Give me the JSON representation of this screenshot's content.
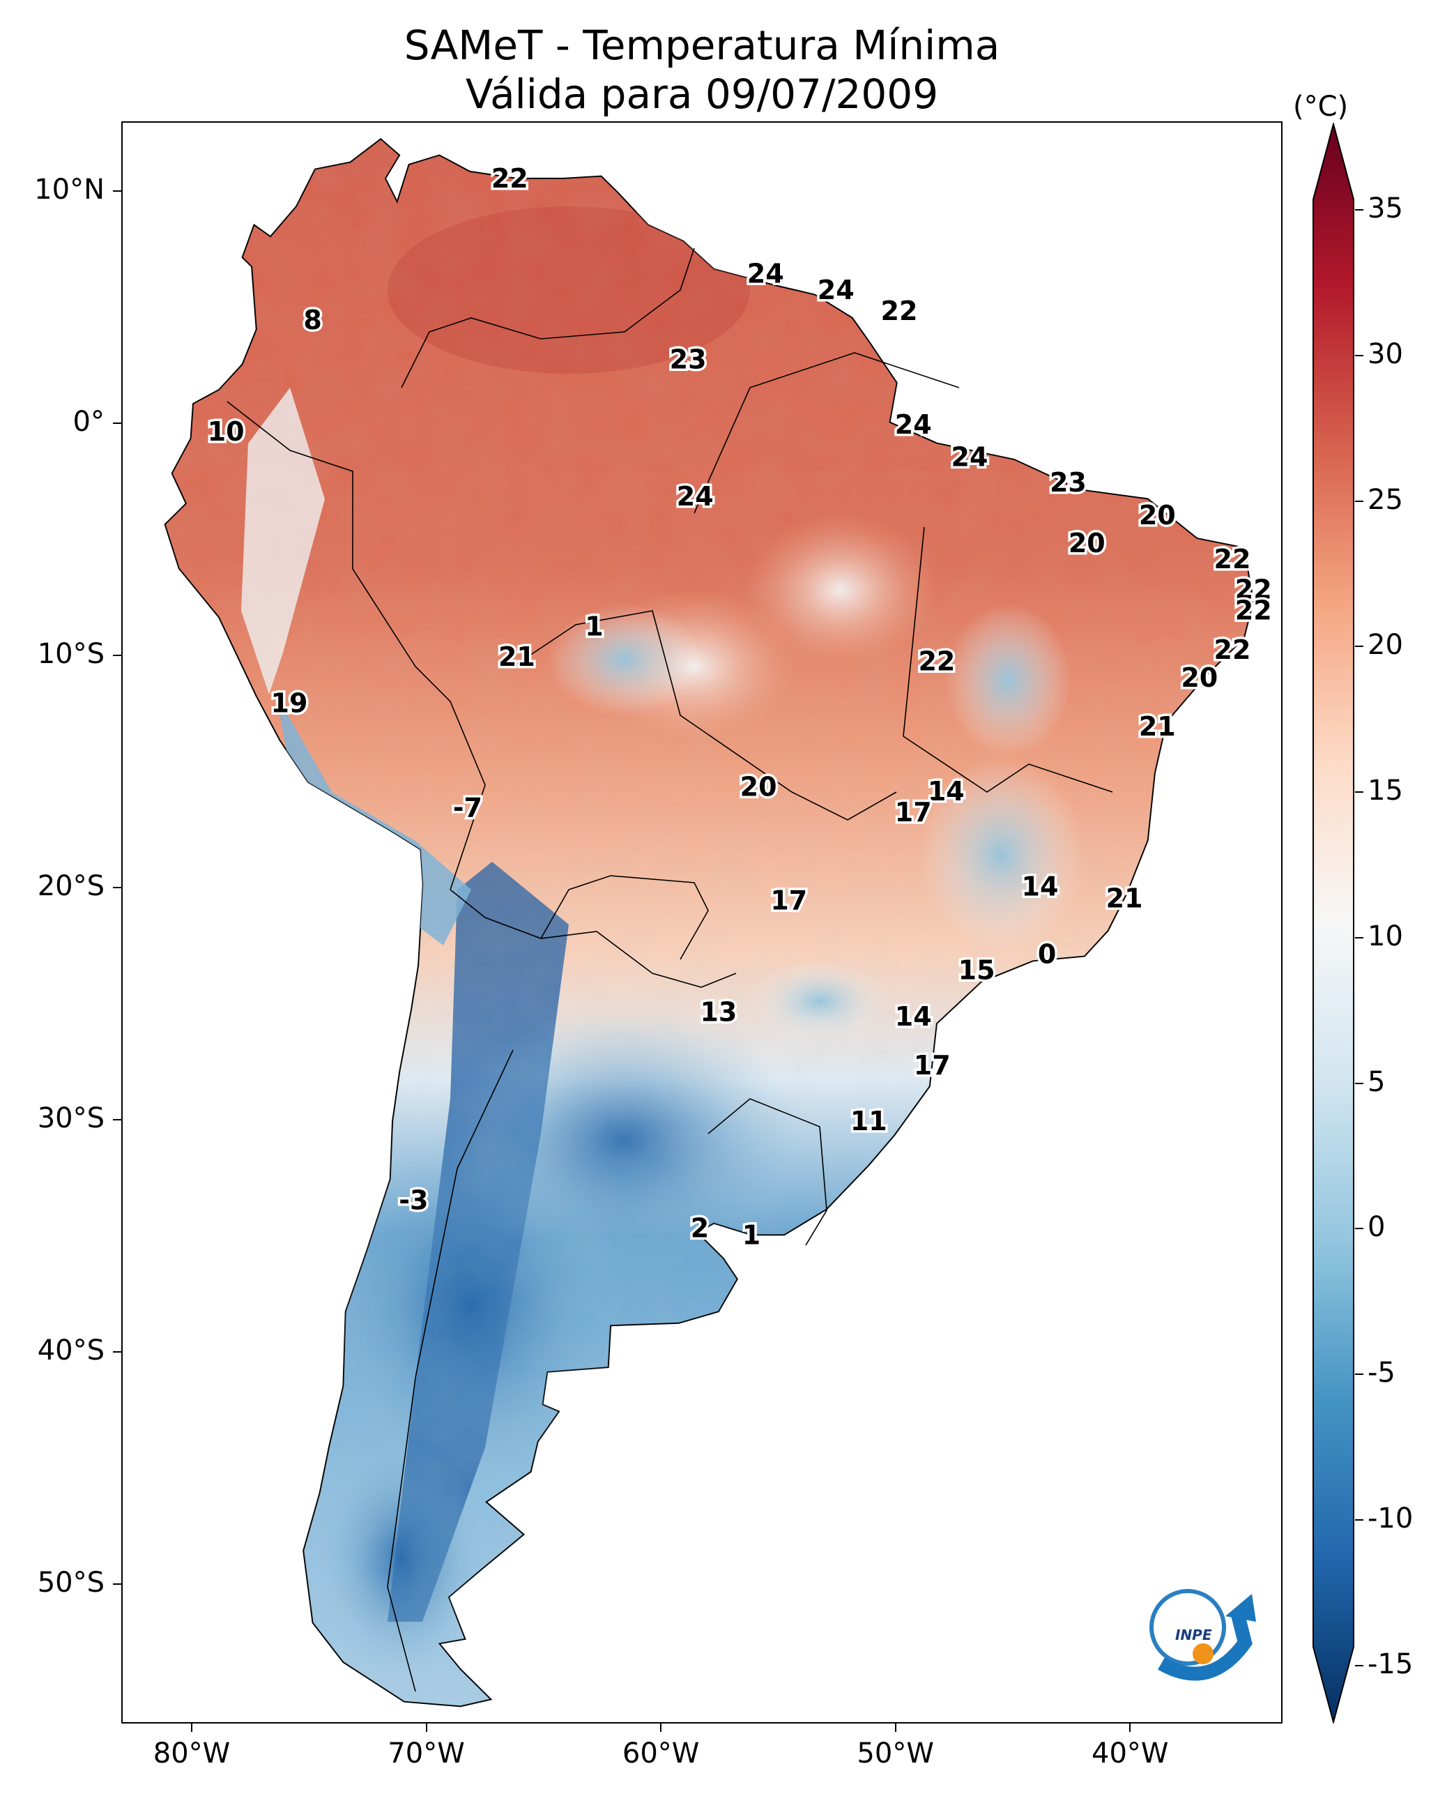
{
  "header": {
    "title": "SAMeT - Temperatura Mínima",
    "subtitle": "Válida para 09/07/2009"
  },
  "axes": {
    "lat_labels": [
      "10°N",
      "0°",
      "10°S",
      "20°S",
      "30°S",
      "40°S",
      "50°S"
    ],
    "lat_values": [
      10,
      0,
      -10,
      -20,
      -30,
      -40,
      -50
    ],
    "lon_labels": [
      "80°W",
      "70°W",
      "60°W",
      "50°W",
      "40°W"
    ],
    "lon_values": [
      -80,
      -70,
      -60,
      -50,
      -40
    ],
    "lat_range": [
      -56,
      13
    ],
    "lon_range": [
      -83,
      -33.5
    ]
  },
  "colorbar": {
    "unit": "(°C)",
    "ticks": [
      "35",
      "30",
      "25",
      "20",
      "15",
      "10",
      "5",
      "0",
      "-5",
      "-10",
      "-15"
    ],
    "tick_values": [
      35,
      30,
      25,
      20,
      15,
      10,
      5,
      0,
      -5,
      -10,
      -15
    ],
    "range": [
      -17,
      38
    ],
    "colormap": "RdBu_r",
    "colors": [
      "#053061",
      "#2166ac",
      "#4393c3",
      "#92c5de",
      "#d1e5f0",
      "#f7f7f7",
      "#fddbc7",
      "#f4a582",
      "#d6604d",
      "#b2182b",
      "#67001f"
    ]
  },
  "station_values": [
    {
      "label": "22",
      "lon": -66.5,
      "lat": 10.6
    },
    {
      "label": "24",
      "lon": -55.6,
      "lat": 6.5
    },
    {
      "label": "24",
      "lon": -52.6,
      "lat": 5.8
    },
    {
      "label": "22",
      "lon": -49.9,
      "lat": 4.9
    },
    {
      "label": "8",
      "lon": -74.9,
      "lat": 4.5
    },
    {
      "label": "23",
      "lon": -58.9,
      "lat": 2.8
    },
    {
      "label": "24",
      "lon": -49.3,
      "lat": 0.0
    },
    {
      "label": "10",
      "lon": -78.6,
      "lat": -0.3
    },
    {
      "label": "24",
      "lon": -46.9,
      "lat": -1.4
    },
    {
      "label": "23",
      "lon": -42.7,
      "lat": -2.5
    },
    {
      "label": "24",
      "lon": -58.6,
      "lat": -3.1
    },
    {
      "label": "20",
      "lon": -38.9,
      "lat": -3.9
    },
    {
      "label": "20",
      "lon": -41.9,
      "lat": -5.1
    },
    {
      "label": "22",
      "lon": -35.7,
      "lat": -5.8
    },
    {
      "label": "22",
      "lon": -34.8,
      "lat": -7.1
    },
    {
      "label": "22",
      "lon": -34.8,
      "lat": -8.0
    },
    {
      "label": "1",
      "lon": -62.9,
      "lat": -8.7
    },
    {
      "label": "22",
      "lon": -35.7,
      "lat": -9.7
    },
    {
      "label": "21",
      "lon": -66.2,
      "lat": -10.0
    },
    {
      "label": "22",
      "lon": -48.3,
      "lat": -10.2
    },
    {
      "label": "20",
      "lon": -37.1,
      "lat": -10.9
    },
    {
      "label": "19",
      "lon": -75.9,
      "lat": -12.0
    },
    {
      "label": "21",
      "lon": -38.9,
      "lat": -13.0
    },
    {
      "label": "14",
      "lon": -47.9,
      "lat": -15.8
    },
    {
      "label": "20",
      "lon": -55.9,
      "lat": -15.6
    },
    {
      "label": "17",
      "lon": -49.3,
      "lat": -16.7
    },
    {
      "label": "-7",
      "lon": -68.3,
      "lat": -16.5
    },
    {
      "label": "14",
      "lon": -43.9,
      "lat": -19.9
    },
    {
      "label": "21",
      "lon": -40.3,
      "lat": -20.4
    },
    {
      "label": "17",
      "lon": -54.6,
      "lat": -20.5
    },
    {
      "label": "0",
      "lon": -43.6,
      "lat": -22.8
    },
    {
      "label": "15",
      "lon": -46.6,
      "lat": -23.5
    },
    {
      "label": "13",
      "lon": -57.6,
      "lat": -25.3
    },
    {
      "label": "14",
      "lon": -49.3,
      "lat": -25.5
    },
    {
      "label": "17",
      "lon": -48.5,
      "lat": -27.6
    },
    {
      "label": "11",
      "lon": -51.2,
      "lat": -30.0
    },
    {
      "label": "-3",
      "lon": -70.6,
      "lat": -33.4
    },
    {
      "label": "2",
      "lon": -58.4,
      "lat": -34.6
    },
    {
      "label": "1",
      "lon": -56.2,
      "lat": -34.9
    }
  ],
  "logo": {
    "text": "INPE"
  }
}
